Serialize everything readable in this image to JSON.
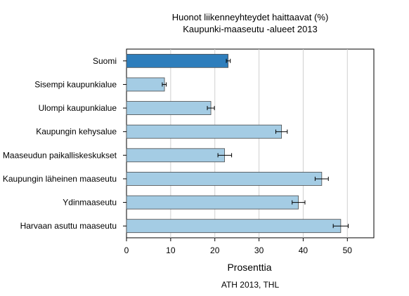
{
  "chart_data": {
    "type": "bar",
    "orientation": "horizontal",
    "title": "Huonot liikenneyhteydet haittaavat (%)",
    "subtitle": "Kaupunki-maaseutu -alueet 2013",
    "xlabel": "Prosenttia",
    "ylabel": "",
    "xlim": [
      0,
      56
    ],
    "xticks": [
      0,
      10,
      20,
      30,
      40,
      50
    ],
    "grid": true,
    "source": "ATH 2013, THL",
    "categories": [
      "Suomi",
      "Sisempi kaupunkialue",
      "Ulompi kaupunkialue",
      "Kaupungin kehysalue",
      "Maaseudun paikalliskeskukset",
      "Kaupungin läheinen maaseutu",
      "Ydinmaaseutu",
      "Harvaan asuttu maaseutu"
    ],
    "values": [
      23.0,
      8.6,
      19.1,
      35.1,
      22.2,
      44.2,
      38.9,
      48.5
    ],
    "error_low": [
      22.6,
      8.1,
      18.3,
      33.8,
      20.7,
      42.7,
      37.5,
      46.8
    ],
    "error_high": [
      23.5,
      9.0,
      19.9,
      36.4,
      23.8,
      45.7,
      40.4,
      50.2
    ],
    "highlight_color": "#2e7ebc",
    "bar_color": "#a4cce4",
    "bar_border": "#4a4a4a"
  }
}
